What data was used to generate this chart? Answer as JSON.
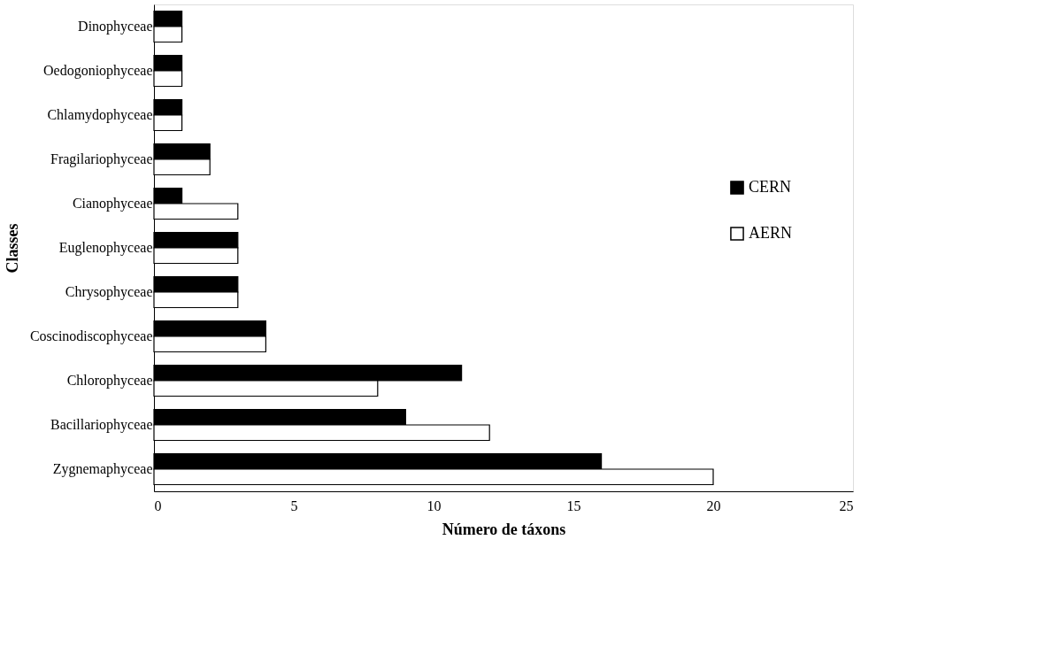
{
  "chart_data": {
    "type": "bar",
    "orientation": "horizontal",
    "xlabel": "Número de táxons",
    "ylabel": "Classes",
    "categories": [
      "Dinophyceae",
      "Oedogoniophyceae",
      "Chlamydophyceae",
      "Fragilariophyceae",
      "Cianophyceae",
      "Euglenophyceae",
      "Chrysophyceae",
      "Coscinodiscophyceae",
      "Chlorophyceae",
      "Bacillariophyceae",
      "Zygnemaphyceae"
    ],
    "series": [
      {
        "name": "CERN",
        "color": "#000000",
        "values": [
          1,
          1,
          1,
          2,
          1,
          3,
          3,
          4,
          11,
          9,
          16
        ]
      },
      {
        "name": "AERN",
        "color": "#ffffff",
        "values": [
          1,
          1,
          1,
          2,
          3,
          3,
          3,
          4,
          8,
          12,
          20
        ]
      }
    ],
    "xlim": [
      0,
      25
    ],
    "xticks": [
      0,
      5,
      10,
      15,
      20,
      25
    ],
    "grid": false,
    "legend": "right"
  }
}
